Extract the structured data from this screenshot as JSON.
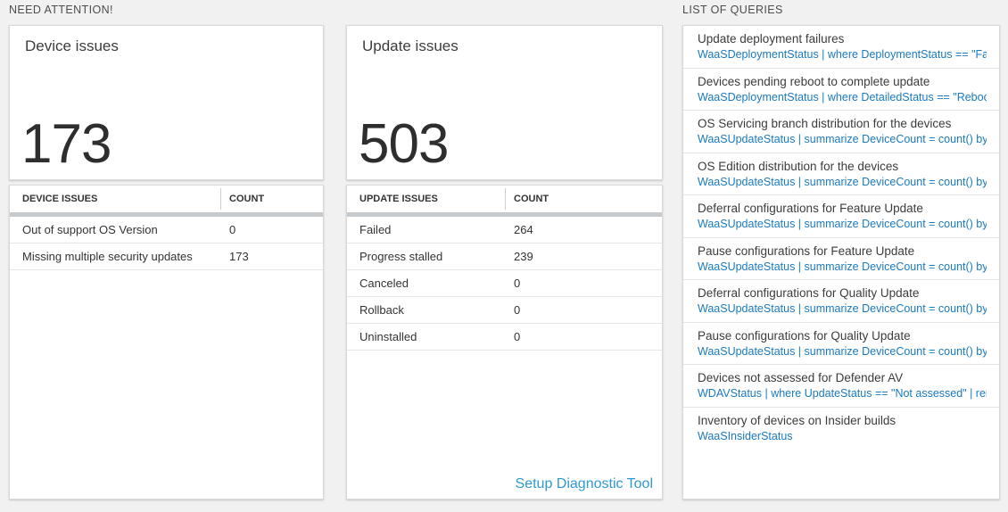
{
  "colors": {
    "page_background": "#f1f1f1",
    "panel_background": "#ffffff",
    "panel_border": "#d9d9d9",
    "query_link_blue": "#1b7ac0",
    "setup_link_blue": "#2e9ad2",
    "big_number_color": "#2e2e2e",
    "scrollbar_gray": "#c7cacc"
  },
  "sections": {
    "need_attention_title": "NEED ATTENTION!",
    "queries_title": "LIST OF QUERIES"
  },
  "device_card": {
    "title": "Device issues",
    "count": "173",
    "table": {
      "headers": {
        "label": "DEVICE ISSUES",
        "count": "COUNT"
      },
      "rows": [
        {
          "label": "Out of support OS Version",
          "count": "0"
        },
        {
          "label": "Missing multiple security updates",
          "count": "173"
        }
      ]
    }
  },
  "update_card": {
    "title": "Update issues",
    "count": "503",
    "table": {
      "headers": {
        "label": "UPDATE ISSUES",
        "count": "COUNT"
      },
      "rows": [
        {
          "label": "Failed",
          "count": "264"
        },
        {
          "label": "Progress stalled",
          "count": "239"
        },
        {
          "label": "Canceled",
          "count": "0"
        },
        {
          "label": "Rollback",
          "count": "0"
        },
        {
          "label": "Uninstalled",
          "count": "0"
        }
      ]
    },
    "footer_link": "Setup Diagnostic Tool"
  },
  "query_list": {
    "items": [
      {
        "title": "Update deployment failures",
        "query": "WaaSDeploymentStatus | where DeploymentStatus == \"Failed\" |..."
      },
      {
        "title": "Devices pending reboot to complete update",
        "query": "WaaSDeploymentStatus | where DetailedStatus == \"Reboot pend..."
      },
      {
        "title": "OS Servicing branch distribution for the devices",
        "query": "WaaSUpdateStatus | summarize DeviceCount = count() by OSSer..."
      },
      {
        "title": "OS Edition distribution for the devices",
        "query": "WaaSUpdateStatus | summarize DeviceCount = count() by OSEdit..."
      },
      {
        "title": "Deferral configurations for Feature Update",
        "query": "WaaSUpdateStatus | summarize DeviceCount = count() by Featur..."
      },
      {
        "title": "Pause configurations for Feature Update",
        "query": "WaaSUpdateStatus | summarize DeviceCount = count() by Featur..."
      },
      {
        "title": "Deferral configurations for Quality Update",
        "query": "WaaSUpdateStatus | summarize DeviceCount = count() by Qualit..."
      },
      {
        "title": "Pause configurations for Quality Update",
        "query": "WaaSUpdateStatus | summarize DeviceCount = count() by Qualit..."
      },
      {
        "title": "Devices not assessed for Defender AV",
        "query": "WDAVStatus | where UpdateStatus == \"Not assessed\" | render ta..."
      },
      {
        "title": "Inventory of devices on Insider builds",
        "query": "WaaSInsiderStatus"
      }
    ]
  }
}
